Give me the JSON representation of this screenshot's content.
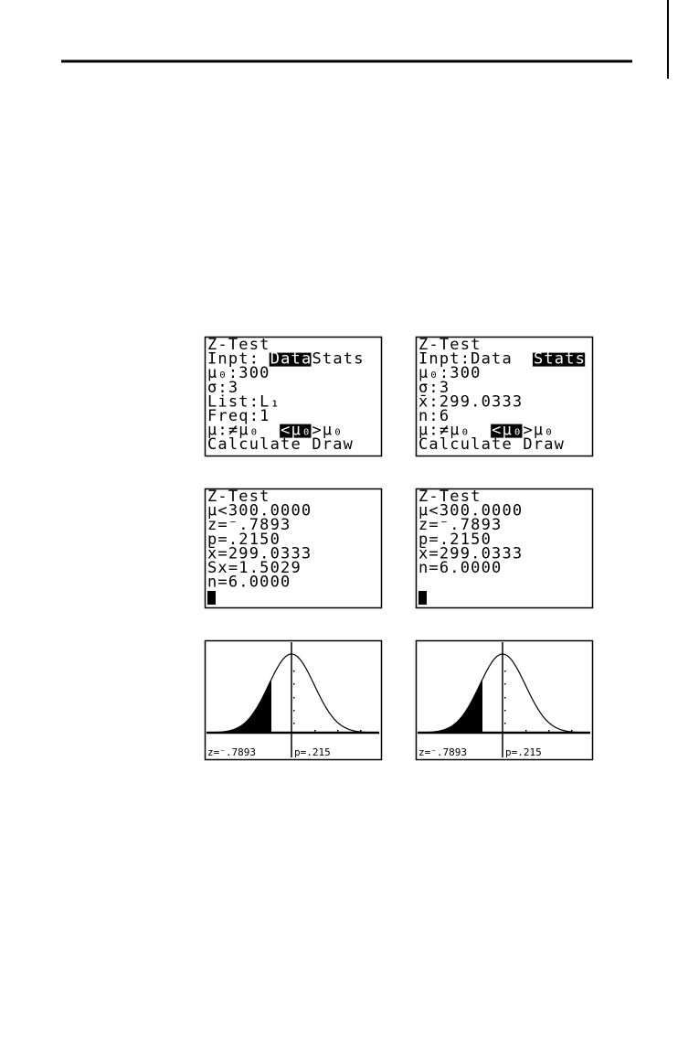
{
  "screens": [
    {
      "lines": [
        [
          {
            "text": "Z-Test"
          }
        ],
        [
          {
            "text": " Inpt:"
          },
          {
            "text": "Data",
            "highlight": true
          },
          {
            "text": " Stats"
          }
        ],
        [
          {
            "text": " μ₀:300"
          }
        ],
        [
          {
            "text": " σ:3"
          }
        ],
        [
          {
            "text": " List:L₁"
          }
        ],
        [
          {
            "text": " Freq:1"
          }
        ],
        [
          {
            "text": " μ:≠μ₀ "
          },
          {
            "text": "<μ₀",
            "highlight": true
          },
          {
            "text": " >μ₀"
          }
        ],
        [
          {
            "text": " Calculate Draw"
          }
        ]
      ]
    },
    {
      "lines": [
        [
          {
            "text": "Z-Test"
          }
        ],
        [
          {
            "text": " Inpt:Data "
          },
          {
            "text": "Stats",
            "highlight": true
          }
        ],
        [
          {
            "text": " μ₀:300"
          }
        ],
        [
          {
            "text": " σ:3"
          }
        ],
        [
          {
            "text": " x̄:299.0333"
          }
        ],
        [
          {
            "text": " n:6"
          }
        ],
        [
          {
            "text": " μ:≠μ₀ "
          },
          {
            "text": "<μ₀",
            "highlight": true
          },
          {
            "text": " >μ₀"
          }
        ],
        [
          {
            "text": " Calculate Draw"
          }
        ]
      ]
    },
    {
      "lines": [
        [
          {
            "text": "Z-Test"
          }
        ],
        [
          {
            "text": " μ<300.0000"
          }
        ],
        [
          {
            "text": " z=⁻.7893"
          }
        ],
        [
          {
            "text": " p=.2150"
          }
        ],
        [
          {
            "text": " x̄=299.0333"
          }
        ],
        [
          {
            "text": " Sx=1.5029"
          }
        ],
        [
          {
            "text": " n=6.0000"
          }
        ]
      ],
      "cursor": true
    },
    {
      "lines": [
        [
          {
            "text": "Z-Test"
          }
        ],
        [
          {
            "text": " μ<300.0000"
          }
        ],
        [
          {
            "text": " z=⁻.7893"
          }
        ],
        [
          {
            "text": " p=.2150"
          }
        ],
        [
          {
            "text": " x̄=299.0333"
          }
        ],
        [
          {
            "text": " n=6.0000"
          }
        ]
      ],
      "cursor": true
    }
  ],
  "graphs": [
    {
      "z_label": "z=⁻.7893",
      "p_label": "p=.215"
    },
    {
      "z_label": "z=⁻.7893",
      "p_label": "p=.215"
    }
  ]
}
